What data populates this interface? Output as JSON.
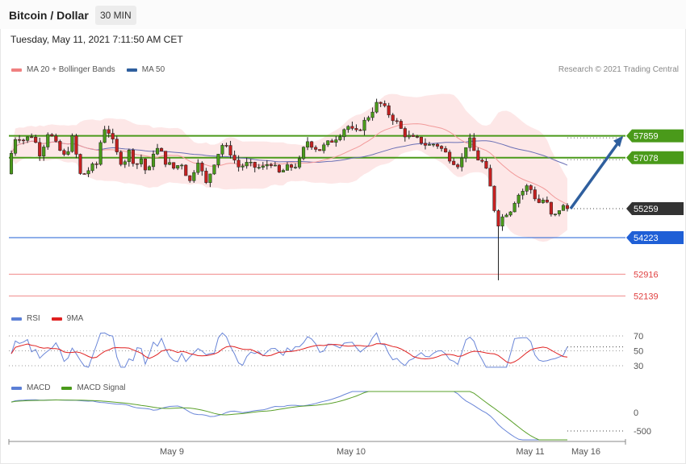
{
  "header": {
    "title": "Bitcoin / Dollar",
    "timeframe": "30 MIN"
  },
  "datetime": "Tuesday, May 11, 2021 7:11:50 AM CET",
  "copyright": "Research © 2021 Trading Central",
  "legends": {
    "price": [
      {
        "label": "MA 20 + Bollinger Bands",
        "color": "#f08080"
      },
      {
        "label": "MA 50",
        "color": "#2f5f9e"
      }
    ],
    "rsi": [
      {
        "label": "RSI",
        "color": "#5b7fd6"
      },
      {
        "label": "9MA",
        "color": "#e02020"
      }
    ],
    "macd": [
      {
        "label": "MACD",
        "color": "#5b7fd6"
      },
      {
        "label": "MACD Signal",
        "color": "#4a9a1a"
      }
    ]
  },
  "chart_data": {
    "type": "candlestick",
    "price_axis": {
      "ylim": [
        51600,
        59400
      ]
    },
    "levels": [
      {
        "value": 57859,
        "label": "57859",
        "kind": "resistance",
        "color": "#4a9a1a"
      },
      {
        "value": 57078,
        "label": "57078",
        "kind": "resistance",
        "color": "#4a9a1a"
      },
      {
        "value": 55259,
        "label": "55259",
        "kind": "last",
        "color": "#333333"
      },
      {
        "value": 54223,
        "label": "54223",
        "kind": "pivot",
        "color": "#1f5fd6"
      },
      {
        "value": 52916,
        "label": "52916",
        "kind": "support",
        "color": "#e04040"
      },
      {
        "value": 52139,
        "label": "52139",
        "kind": "support",
        "color": "#e04040"
      }
    ],
    "projection": {
      "from": 55259,
      "to": 57859
    },
    "x_ticks": [
      "May 9",
      "May 10",
      "May 11",
      "May 16"
    ],
    "rsi": {
      "ticks": [
        70,
        50,
        30
      ],
      "ylim": [
        20,
        80
      ]
    },
    "macd": {
      "ticks": [
        0,
        -500
      ],
      "ylim": [
        -700,
        700
      ]
    }
  }
}
